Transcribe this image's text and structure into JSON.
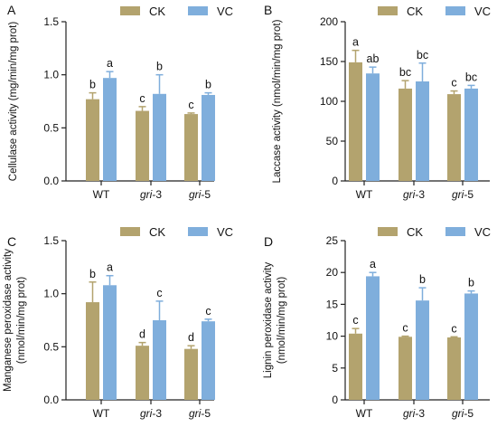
{
  "legend": {
    "ck": "CK",
    "vc": "VC"
  },
  "colors": {
    "ck": "#B3A36E",
    "vc": "#7FAEDC",
    "axis": "#222222"
  },
  "chart_data": [
    {
      "type": "bar",
      "panel": "A",
      "ylabel": "Cellulase activity (mg/min/mg prot)",
      "categories": [
        "WT",
        "gri-3",
        "gri-5"
      ],
      "series": [
        {
          "name": "CK",
          "values": [
            0.77,
            0.66,
            0.63
          ],
          "errors": [
            0.06,
            0.04,
            0.01
          ],
          "letters": [
            "b",
            "c",
            "c"
          ]
        },
        {
          "name": "VC",
          "values": [
            0.97,
            0.82,
            0.81
          ],
          "errors": [
            0.06,
            0.18,
            0.02
          ],
          "letters": [
            "a",
            "b",
            "b"
          ]
        }
      ],
      "ylim": [
        0,
        1.5
      ],
      "yticks": [
        "0.0",
        "0.5",
        "1.0",
        "1.5"
      ],
      "legend_position": "top-center"
    },
    {
      "type": "bar",
      "panel": "B",
      "ylabel": "Laccase activity (nmol/min/mg prot)",
      "categories": [
        "WT",
        "gri-3",
        "gri-5"
      ],
      "series": [
        {
          "name": "CK",
          "values": [
            149,
            116,
            109
          ],
          "errors": [
            15,
            10,
            4
          ],
          "letters": [
            "a",
            "bc",
            "c"
          ]
        },
        {
          "name": "VC",
          "values": [
            135,
            125,
            116
          ],
          "errors": [
            8,
            23,
            4
          ],
          "letters": [
            "ab",
            "bc",
            "bc"
          ]
        }
      ],
      "ylim": [
        0,
        200
      ],
      "yticks": [
        "0",
        "50",
        "100",
        "150",
        "200"
      ],
      "legend_position": "top-center"
    },
    {
      "type": "bar",
      "panel": "C",
      "ylabel": "Manganese peroxidase activity (nmol/min/mg prot)",
      "ylabel_lines": [
        "Manganese peroxidase activity",
        "(nmol/min/mg prot)"
      ],
      "categories": [
        "WT",
        "gri-3",
        "gri-5"
      ],
      "series": [
        {
          "name": "CK",
          "values": [
            0.92,
            0.51,
            0.48
          ],
          "errors": [
            0.19,
            0.03,
            0.03
          ],
          "letters": [
            "b",
            "d",
            "d"
          ]
        },
        {
          "name": "VC",
          "values": [
            1.08,
            0.75,
            0.74
          ],
          "errors": [
            0.09,
            0.18,
            0.02
          ],
          "letters": [
            "a",
            "c",
            "c"
          ]
        }
      ],
      "ylim": [
        0,
        1.5
      ],
      "yticks": [
        "0.0",
        "0.5",
        "1.0",
        "1.5"
      ],
      "legend_position": "top-center"
    },
    {
      "type": "bar",
      "panel": "D",
      "ylabel": "Lignin peroxidase activity (nmol/min/mg prot)",
      "ylabel_lines": [
        "Lignin peroxidase activity",
        "(nmol/min/mg prot)"
      ],
      "categories": [
        "WT",
        "gri-3",
        "gri-5"
      ],
      "series": [
        {
          "name": "CK",
          "values": [
            10.4,
            9.9,
            9.8
          ],
          "errors": [
            0.8,
            0.1,
            0.1
          ],
          "letters": [
            "c",
            "c",
            "c"
          ]
        },
        {
          "name": "VC",
          "values": [
            19.4,
            15.6,
            16.7
          ],
          "errors": [
            0.6,
            2.0,
            0.4
          ],
          "letters": [
            "a",
            "b",
            "b"
          ]
        }
      ],
      "ylim": [
        0,
        25
      ],
      "yticks": [
        "0",
        "5",
        "10",
        "15",
        "20",
        "25"
      ],
      "legend_position": "top-center"
    }
  ]
}
